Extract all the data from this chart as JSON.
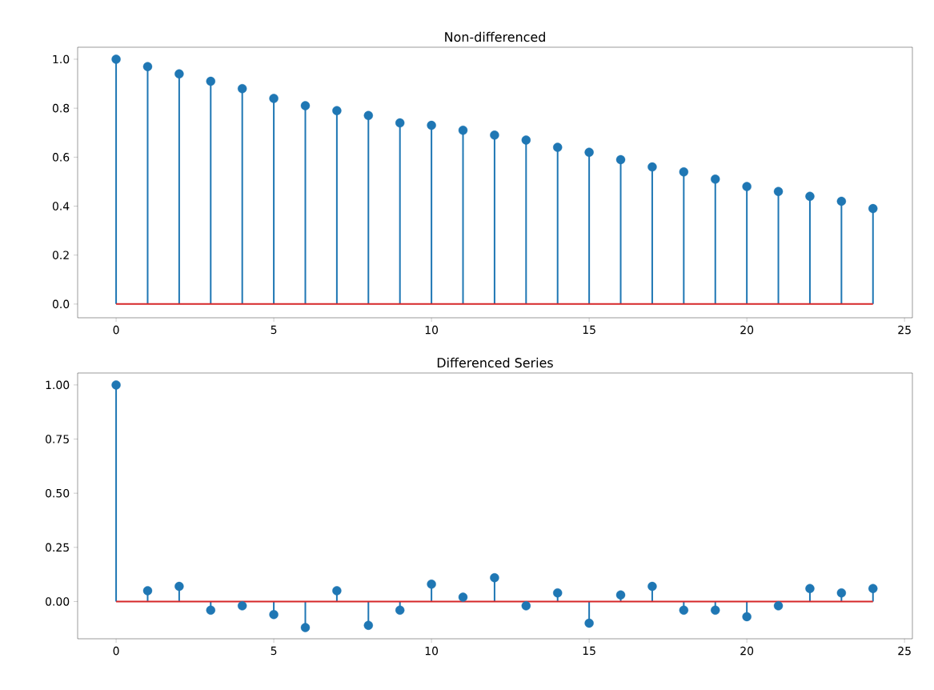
{
  "chart_data": [
    {
      "type": "lollipop",
      "title": "Non-differenced",
      "x": [
        0,
        1,
        2,
        3,
        4,
        5,
        6,
        7,
        8,
        9,
        10,
        11,
        12,
        13,
        14,
        15,
        16,
        17,
        18,
        19,
        20,
        21,
        22,
        23,
        24
      ],
      "series": [
        {
          "color": "#1f77b4",
          "values": [
            1.0,
            0.97,
            0.94,
            0.91,
            0.88,
            0.84,
            0.81,
            0.79,
            0.77,
            0.74,
            0.73,
            0.71,
            0.69,
            0.67,
            0.64,
            0.62,
            0.59,
            0.56,
            0.54,
            0.51,
            0.48,
            0.46,
            0.44,
            0.42,
            0.39
          ]
        }
      ],
      "marker": "circle",
      "xlim": [
        -1.22,
        25.25
      ],
      "ylim": [
        -0.056,
        1.049
      ],
      "xticks": [
        0,
        5,
        10,
        15,
        20,
        25
      ],
      "yticks": [
        {
          "value": 0,
          "label": "0.0"
        },
        {
          "value": 0.2,
          "label": "0.2"
        },
        {
          "value": 0.4,
          "label": "0.4"
        },
        {
          "value": 0.6,
          "label": "0.6"
        },
        {
          "value": 0.8,
          "label": "0.8"
        },
        {
          "value": 1.0,
          "label": "1.0"
        }
      ],
      "ref_lines": [
        {
          "axis": "y",
          "value": 0,
          "color": "#d62728"
        }
      ]
    },
    {
      "type": "lollipop",
      "title": "Differenced Series",
      "x": [
        0,
        1,
        2,
        3,
        4,
        5,
        6,
        7,
        8,
        9,
        10,
        11,
        12,
        13,
        14,
        15,
        16,
        17,
        18,
        19,
        20,
        21,
        22,
        23,
        24
      ],
      "series": [
        {
          "color": "#1f77b4",
          "values": [
            1.0,
            0.05,
            0.07,
            -0.04,
            -0.02,
            -0.06,
            -0.12,
            0.05,
            -0.11,
            -0.04,
            0.08,
            0.02,
            0.11,
            -0.02,
            0.04,
            -0.1,
            0.03,
            0.07,
            -0.04,
            -0.04,
            -0.07,
            -0.02,
            0.06,
            0.04,
            0.06
          ]
        }
      ],
      "marker": "circle",
      "xlim": [
        -1.22,
        25.25
      ],
      "ylim": [
        -0.172,
        1.055
      ],
      "xticks": [
        0,
        5,
        10,
        15,
        20,
        25
      ],
      "yticks": [
        {
          "value": 0,
          "label": "0.00"
        },
        {
          "value": 0.25,
          "label": "0.25"
        },
        {
          "value": 0.5,
          "label": "0.50"
        },
        {
          "value": 0.75,
          "label": "0.75"
        },
        {
          "value": 1.0,
          "label": "1.00"
        }
      ],
      "ref_lines": [
        {
          "axis": "y",
          "value": 0,
          "color": "#d62728"
        }
      ]
    }
  ]
}
